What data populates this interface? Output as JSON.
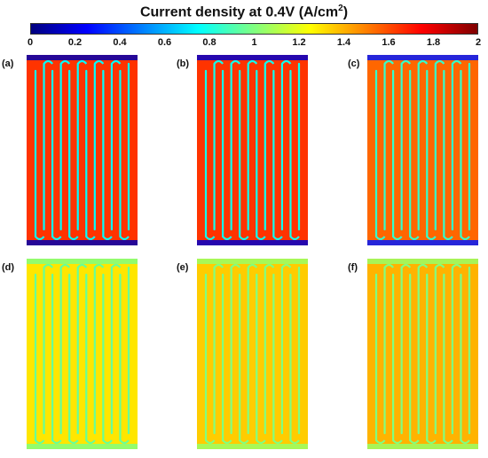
{
  "chart_data": {
    "type": "heatmap",
    "title": "Current density at 0.4V",
    "unit_prefix": "(A/cm",
    "unit_sup": "2",
    "unit_suffix": ")",
    "colorbar": {
      "min": 0,
      "max": 2,
      "ticks": [
        "0",
        "0.2",
        "0.4",
        "0.6",
        "0.8",
        "1",
        "1.2",
        "1.4",
        "1.6",
        "1.8",
        "2"
      ],
      "colormap": [
        "#00007f",
        "#0000ff",
        "#0080ff",
        "#00ffff",
        "#80ff80",
        "#ffff00",
        "#ff8000",
        "#ff0000",
        "#7f0000"
      ]
    },
    "panels": [
      {
        "label": "(a)",
        "background_level": 1.65,
        "channel_level": 0.75,
        "edge_level": 0.1
      },
      {
        "label": "(b)",
        "background_level": 1.65,
        "channel_level": 0.78,
        "edge_level": 0.15
      },
      {
        "label": "(c)",
        "background_level": 1.55,
        "channel_level": 0.85,
        "edge_level": 0.3
      },
      {
        "label": "(d)",
        "background_level": 1.3,
        "channel_level": 0.95,
        "edge_level": 1.0
      },
      {
        "label": "(e)",
        "background_level": 1.35,
        "channel_level": 1.0,
        "edge_level": 1.05
      },
      {
        "label": "(f)",
        "background_level": 1.4,
        "channel_level": 1.0,
        "edge_level": 1.05
      }
    ]
  }
}
